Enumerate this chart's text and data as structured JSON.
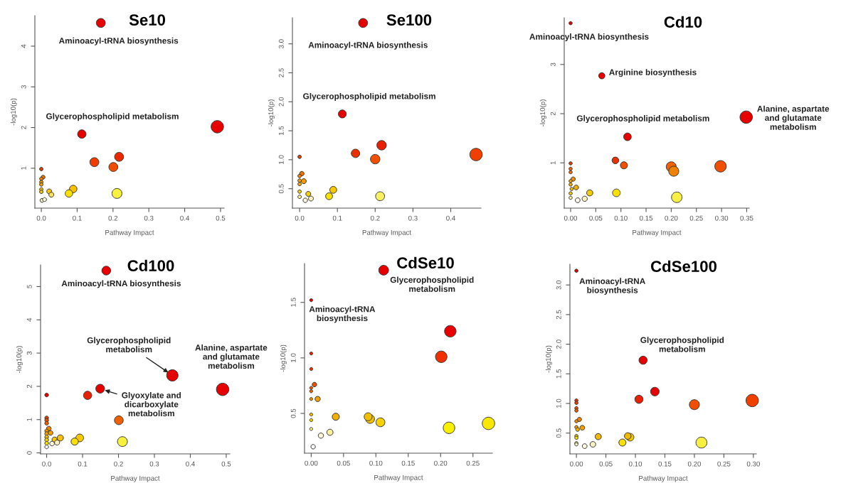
{
  "chart_data": [
    {
      "type": "bubble",
      "title": "Se10",
      "xlabel": "Pathway Impact",
      "ylabel": "-log10(p)",
      "x": [
        0.166,
        0.491,
        0.113,
        0.217,
        0.148,
        0.201,
        0,
        0.005,
        0,
        0,
        0,
        0,
        0,
        0.022,
        0.028,
        0.089,
        0.077,
        0.211,
        0.002,
        0.009
      ],
      "values": [
        4.57,
        2.02,
        1.84,
        1.28,
        1.15,
        1.03,
        0.98,
        0.78,
        0.74,
        0.66,
        0.6,
        0.48,
        0.42,
        0.43,
        0.35,
        0.49,
        0.38,
        0.38,
        0.21,
        0.23
      ],
      "sizes": [
        0.52,
        1,
        0.46,
        0.52,
        0.52,
        0.52,
        0.08,
        0.1,
        0.08,
        0.08,
        0.08,
        0.08,
        0.08,
        0.16,
        0.16,
        0.36,
        0.36,
        0.64,
        0.1,
        0.1
      ],
      "colors": [
        "#e60000",
        "#e60000",
        "#e60000",
        "#e82800",
        "#f03c00",
        "#f04c00",
        "#e04000",
        "#f07000",
        "#f08000",
        "#f09000",
        "#f0a000",
        "#f0c000",
        "#f0c800",
        "#f8c800",
        "#f8e060",
        "#f8c000",
        "#f8e000",
        "#f8f040",
        "#f8f0c0",
        "#fff8e0"
      ],
      "xlim": [
        -0.018,
        0.51
      ],
      "ylim": [
        0.02,
        4.75
      ],
      "xticks": [
        {
          "value": 0,
          "label": "0.0"
        },
        0.1,
        0.2,
        0.3,
        0.4,
        0.5
      ],
      "yticks": [
        1,
        2,
        3,
        4
      ],
      "annotations": [
        {
          "text": "Aminoacyl-tRNA biosynthesis",
          "x": 0.166,
          "y": 4.57
        },
        {
          "text": "Glycerophospholipid metabolism",
          "x": 0.113,
          "y": 1.84
        }
      ]
    },
    {
      "type": "bubble",
      "title": "Se100",
      "xlabel": "Pathway Impact",
      "ylabel": "-log10(p)",
      "x": [
        0.168,
        0.467,
        0.113,
        0.217,
        0.148,
        0.2,
        0,
        0.006,
        0,
        0,
        0.011,
        0,
        0,
        0.023,
        0.089,
        0.078,
        0.213,
        0,
        0.015,
        0.03
      ],
      "values": [
        3.36,
        1.09,
        1.79,
        1.25,
        1.11,
        1.01,
        1.05,
        0.76,
        0.72,
        0.64,
        0.63,
        0.58,
        0.45,
        0.41,
        0.48,
        0.37,
        0.37,
        0.36,
        0.3,
        0.33
      ],
      "sizes": [
        0.52,
        1,
        0.41,
        0.58,
        0.46,
        0.58,
        0.08,
        0.13,
        0.08,
        0.08,
        0.16,
        0.08,
        0.08,
        0.16,
        0.31,
        0.31,
        0.52,
        0.08,
        0.13,
        0.16
      ],
      "colors": [
        "#e60000",
        "#f04000",
        "#e60000",
        "#e82000",
        "#e83000",
        "#f05000",
        "#e04000",
        "#f07000",
        "#f08000",
        "#f0a000",
        "#f0a000",
        "#f0b000",
        "#f0d000",
        "#f8d000",
        "#f8c800",
        "#f8e000",
        "#f8f060",
        "#f8f0a0",
        "#fff8e0",
        "#f8f0c0"
      ],
      "xlim": [
        -0.019,
        0.48
      ],
      "ylim": [
        0.165,
        3.45
      ],
      "xticks": [
        {
          "value": 0,
          "label": "0.0"
        },
        0.1,
        0.2,
        0.3,
        0.4
      ],
      "yticks": [
        0.5,
        {
          "value": 1,
          "label": "1.0"
        },
        1.5,
        {
          "value": 2,
          "label": "2.0"
        },
        2.5,
        {
          "value": 3,
          "label": "3.0"
        }
      ],
      "annotations": [
        {
          "text": "Aminoacyl-tRNA biosynthesis",
          "x": 0.168,
          "y": 3.36
        },
        {
          "text": "Glycerophospholipid metabolism",
          "x": 0.113,
          "y": 1.79
        }
      ]
    },
    {
      "type": "bubble",
      "title": "Cd10",
      "xlabel": "Pathway Impact",
      "ylabel": "-log10(p)",
      "x": [
        0,
        0.062,
        0.349,
        0.113,
        0.089,
        0.106,
        0.2,
        0.205,
        0.298,
        0,
        0,
        0,
        0.005,
        0,
        0,
        0.011,
        0.002,
        0,
        0.038,
        0.091,
        0.211,
        0,
        0.014,
        0.028
      ],
      "values": [
        3.84,
        2.77,
        1.93,
        1.53,
        1.05,
        0.95,
        0.92,
        0.83,
        0.93,
        0.99,
        0.88,
        0.81,
        0.67,
        0.63,
        0.56,
        0.5,
        0.47,
        0.38,
        0.39,
        0.39,
        0.3,
        0.29,
        0.24,
        0.27
      ],
      "sizes": [
        0.07,
        0.25,
        1,
        0.38,
        0.29,
        0.33,
        0.65,
        0.65,
        0.85,
        0.07,
        0.07,
        0.07,
        0.12,
        0.07,
        0.07,
        0.15,
        0.07,
        0.07,
        0.25,
        0.38,
        0.72,
        0.07,
        0.15,
        0.18
      ],
      "colors": [
        "#e60000",
        "#e60000",
        "#e60000",
        "#e60000",
        "#e83000",
        "#f05000",
        "#f06000",
        "#f08000",
        "#f05000",
        "#e04000",
        "#f06000",
        "#f07000",
        "#f09000",
        "#f0a000",
        "#f0b000",
        "#f0b000",
        "#f0c000",
        "#f0d000",
        "#f8c800",
        "#f8e000",
        "#f8f040",
        "#f8f0a0",
        "#fff8e8",
        "#f8f0c0"
      ],
      "xlim": [
        -0.0127,
        0.355
      ],
      "ylim": [
        0.08,
        3.95
      ],
      "xticks": [
        {
          "value": 0,
          "label": "0.00"
        },
        0.05,
        {
          "value": 0.1,
          "label": "0.10"
        },
        0.15,
        {
          "value": 0.2,
          "label": "0.20"
        },
        0.25,
        {
          "value": 0.3,
          "label": "0.30"
        },
        0.35
      ],
      "yticks": [
        1,
        2,
        3
      ],
      "annotations": [
        {
          "text": "Aminoacyl-tRNA biosynthesis",
          "x": 0,
          "y": 3.84
        },
        {
          "text": "Arginine biosynthesis",
          "x": 0.062,
          "y": 2.77
        },
        {
          "text": "Glycerophospholipid metabolism",
          "x": 0.113,
          "y": 1.53
        },
        {
          "text": "Alanine, aspartate\nand glutamate\nmetabolism",
          "x": 0.349,
          "y": 1.93
        }
      ]
    },
    {
      "type": "bubble",
      "title": "Cd100",
      "xlabel": "Pathway Impact",
      "ylabel": "-log10(p)",
      "x": [
        0.166,
        0.49,
        0.35,
        0.149,
        0.114,
        0,
        0.201,
        0,
        0,
        0,
        0.006,
        0,
        0,
        0,
        0,
        0,
        0.011,
        0.022,
        0.038,
        0.092,
        0.078,
        0.211,
        0.015,
        0.029,
        0
      ],
      "values": [
        5.48,
        1.91,
        2.33,
        1.93,
        1.73,
        1.74,
        0.98,
        1.05,
        0.98,
        0.89,
        0.73,
        0.66,
        0.58,
        0.48,
        0.39,
        0.29,
        0.6,
        0.4,
        0.45,
        0.45,
        0.34,
        0.34,
        0.28,
        0.31,
        0.18
      ],
      "sizes": [
        0.5,
        1,
        0.84,
        0.5,
        0.44,
        0.09,
        0.5,
        0.09,
        0.09,
        0.09,
        0.14,
        0.09,
        0.09,
        0.09,
        0.09,
        0.09,
        0.14,
        0.17,
        0.25,
        0.39,
        0.34,
        0.63,
        0.14,
        0.17,
        0.09
      ],
      "colors": [
        "#e60000",
        "#e60000",
        "#e60000",
        "#e60000",
        "#e82000",
        "#e60000",
        "#f06000",
        "#e04000",
        "#e05000",
        "#f06000",
        "#f08000",
        "#f09000",
        "#f0a000",
        "#f0c000",
        "#f0d000",
        "#f8e000",
        "#f0a000",
        "#f8c800",
        "#f8c000",
        "#f8c800",
        "#f8e000",
        "#f8f040",
        "#fff8d0",
        "#f8f0c0",
        "#ffffff"
      ],
      "xlim": [
        -0.017,
        0.51
      ],
      "ylim": [
        -0.03,
        5.65
      ],
      "xticks": [
        {
          "value": 0,
          "label": "0.0"
        },
        0.1,
        0.2,
        0.3,
        0.4,
        0.5
      ],
      "yticks": [
        0,
        1,
        2,
        3,
        4,
        5
      ],
      "annotations": [
        {
          "text": "Aminoacyl-tRNA biosynthesis",
          "x": 0.166,
          "y": 5.48
        },
        {
          "text": "Glycerophospholipid\nmetabolism",
          "x": 0.35,
          "y": 2.33
        },
        {
          "text": "Glyoxylate and\ndicarboxylate\nmetabolism",
          "x": 0.149,
          "y": 1.93
        },
        {
          "text": "Alanine, aspartate\nand glutamate\nmetabolism",
          "x": 0.49,
          "y": 1.91
        }
      ]
    },
    {
      "type": "bubble",
      "title": "CdSe10",
      "xlabel": "Pathway Impact",
      "ylabel": "-log10(p)",
      "x": [
        0.112,
        0.215,
        0.201,
        0.274,
        0.213,
        0.107,
        0.091,
        0.088,
        0.038,
        0.029,
        0.015,
        0.003,
        0,
        0,
        0,
        0.005,
        0,
        0,
        0,
        0.01,
        0,
        0,
        0
      ],
      "values": [
        1.79,
        1.24,
        1.01,
        0.41,
        0.37,
        0.42,
        0.45,
        0.47,
        0.47,
        0.33,
        0.3,
        0.2,
        1.52,
        1.04,
        0.9,
        0.76,
        0.73,
        0.7,
        0.63,
        0.63,
        0.49,
        0.44,
        0.36
      ],
      "sizes": [
        0.62,
        0.86,
        0.86,
        1,
        0.86,
        0.51,
        0.51,
        0.41,
        0.33,
        0.25,
        0.18,
        0.13,
        0.06,
        0.06,
        0.06,
        0.13,
        0.06,
        0.06,
        0.06,
        0.18,
        0.06,
        0.06,
        0.06
      ],
      "colors": [
        "#e60000",
        "#e60000",
        "#f03000",
        "#f8e800",
        "#f8f000",
        "#f8d000",
        "#f0c000",
        "#f0c000",
        "#f0b000",
        "#f8f0a0",
        "#fff8d8",
        "#ffffff",
        "#e60000",
        "#e82000",
        "#f03000",
        "#f05000",
        "#f05000",
        "#f06000",
        "#f09000",
        "#f0a000",
        "#f0c000",
        "#f0d000",
        "#f8f080"
      ],
      "xlim": [
        -0.0103,
        0.28
      ],
      "ylim": [
        0.142,
        1.85
      ],
      "xticks": [
        {
          "value": 0,
          "label": "0.00"
        },
        0.05,
        {
          "value": 0.1,
          "label": "0.10"
        },
        0.15,
        {
          "value": 0.2,
          "label": "0.20"
        },
        0.25
      ],
      "yticks": [
        0.5,
        {
          "value": 1,
          "label": "1.0"
        },
        1.5
      ],
      "annotations": [
        {
          "text": "Glycerophospholipid\nmetabolism",
          "x": 0.112,
          "y": 1.79
        },
        {
          "text": "Aminoacyl-tRNA\nbiosynthesis",
          "x": 0,
          "y": 1.52
        }
      ]
    },
    {
      "type": "bubble",
      "title": "CdSe100",
      "xlabel": "Pathway Impact",
      "ylabel": "-log10(p)",
      "x": [
        0,
        0.113,
        0.133,
        0.106,
        0.2,
        0.298,
        0.212,
        0.091,
        0.087,
        0.078,
        0.037,
        0.028,
        0.014,
        0,
        0,
        0,
        0,
        0.005,
        0,
        0.01,
        0,
        0.002,
        0,
        0,
        0,
        0
      ],
      "values": [
        3.24,
        1.73,
        1.2,
        1.07,
        0.98,
        1.05,
        0.34,
        0.43,
        0.45,
        0.34,
        0.44,
        0.31,
        0.28,
        1.05,
        1.01,
        0.92,
        0.88,
        0.73,
        0.7,
        0.59,
        0.6,
        0.56,
        0.45,
        0.42,
        0.33,
        0.31
      ],
      "sizes": [
        0.07,
        0.43,
        0.48,
        0.43,
        0.65,
        1,
        0.78,
        0.38,
        0.29,
        0.33,
        0.25,
        0.21,
        0.15,
        0.07,
        0.07,
        0.07,
        0.07,
        0.12,
        0.07,
        0.15,
        0.07,
        0.09,
        0.07,
        0.07,
        0.07,
        0.07
      ],
      "colors": [
        "#e60000",
        "#e60000",
        "#e60000",
        "#e82000",
        "#f05000",
        "#f04000",
        "#f8f040",
        "#f0c800",
        "#f0b800",
        "#f8e000",
        "#f0b800",
        "#f8f0c0",
        "#fff8e0",
        "#e83000",
        "#e84000",
        "#f05000",
        "#f06000",
        "#f08000",
        "#f09000",
        "#f0a000",
        "#f0a000",
        "#f0b000",
        "#f0c800",
        "#f8e000",
        "#f8f0a0",
        "#f8f0c0"
      ],
      "xlim": [
        -0.011,
        0.305
      ],
      "ylim": [
        0.149,
        3.35
      ],
      "xticks": [
        {
          "value": 0,
          "label": "0.00"
        },
        0.05,
        {
          "value": 0.1,
          "label": "0.10"
        },
        0.15,
        {
          "value": 0.2,
          "label": "0.20"
        },
        0.25,
        {
          "value": 0.3,
          "label": "0.30"
        }
      ],
      "yticks": [
        0.5,
        {
          "value": 1,
          "label": "1.0"
        },
        1.5,
        {
          "value": 2,
          "label": "2.0"
        },
        2.5,
        {
          "value": 3,
          "label": "3.0"
        }
      ],
      "annotations": [
        {
          "text": "Aminoacyl-tRNA\nbiosynthesis",
          "x": 0,
          "y": 3.24
        },
        {
          "text": "Glycerophospholipid\nmetabolism",
          "x": 0.113,
          "y": 1.73
        }
      ]
    }
  ]
}
